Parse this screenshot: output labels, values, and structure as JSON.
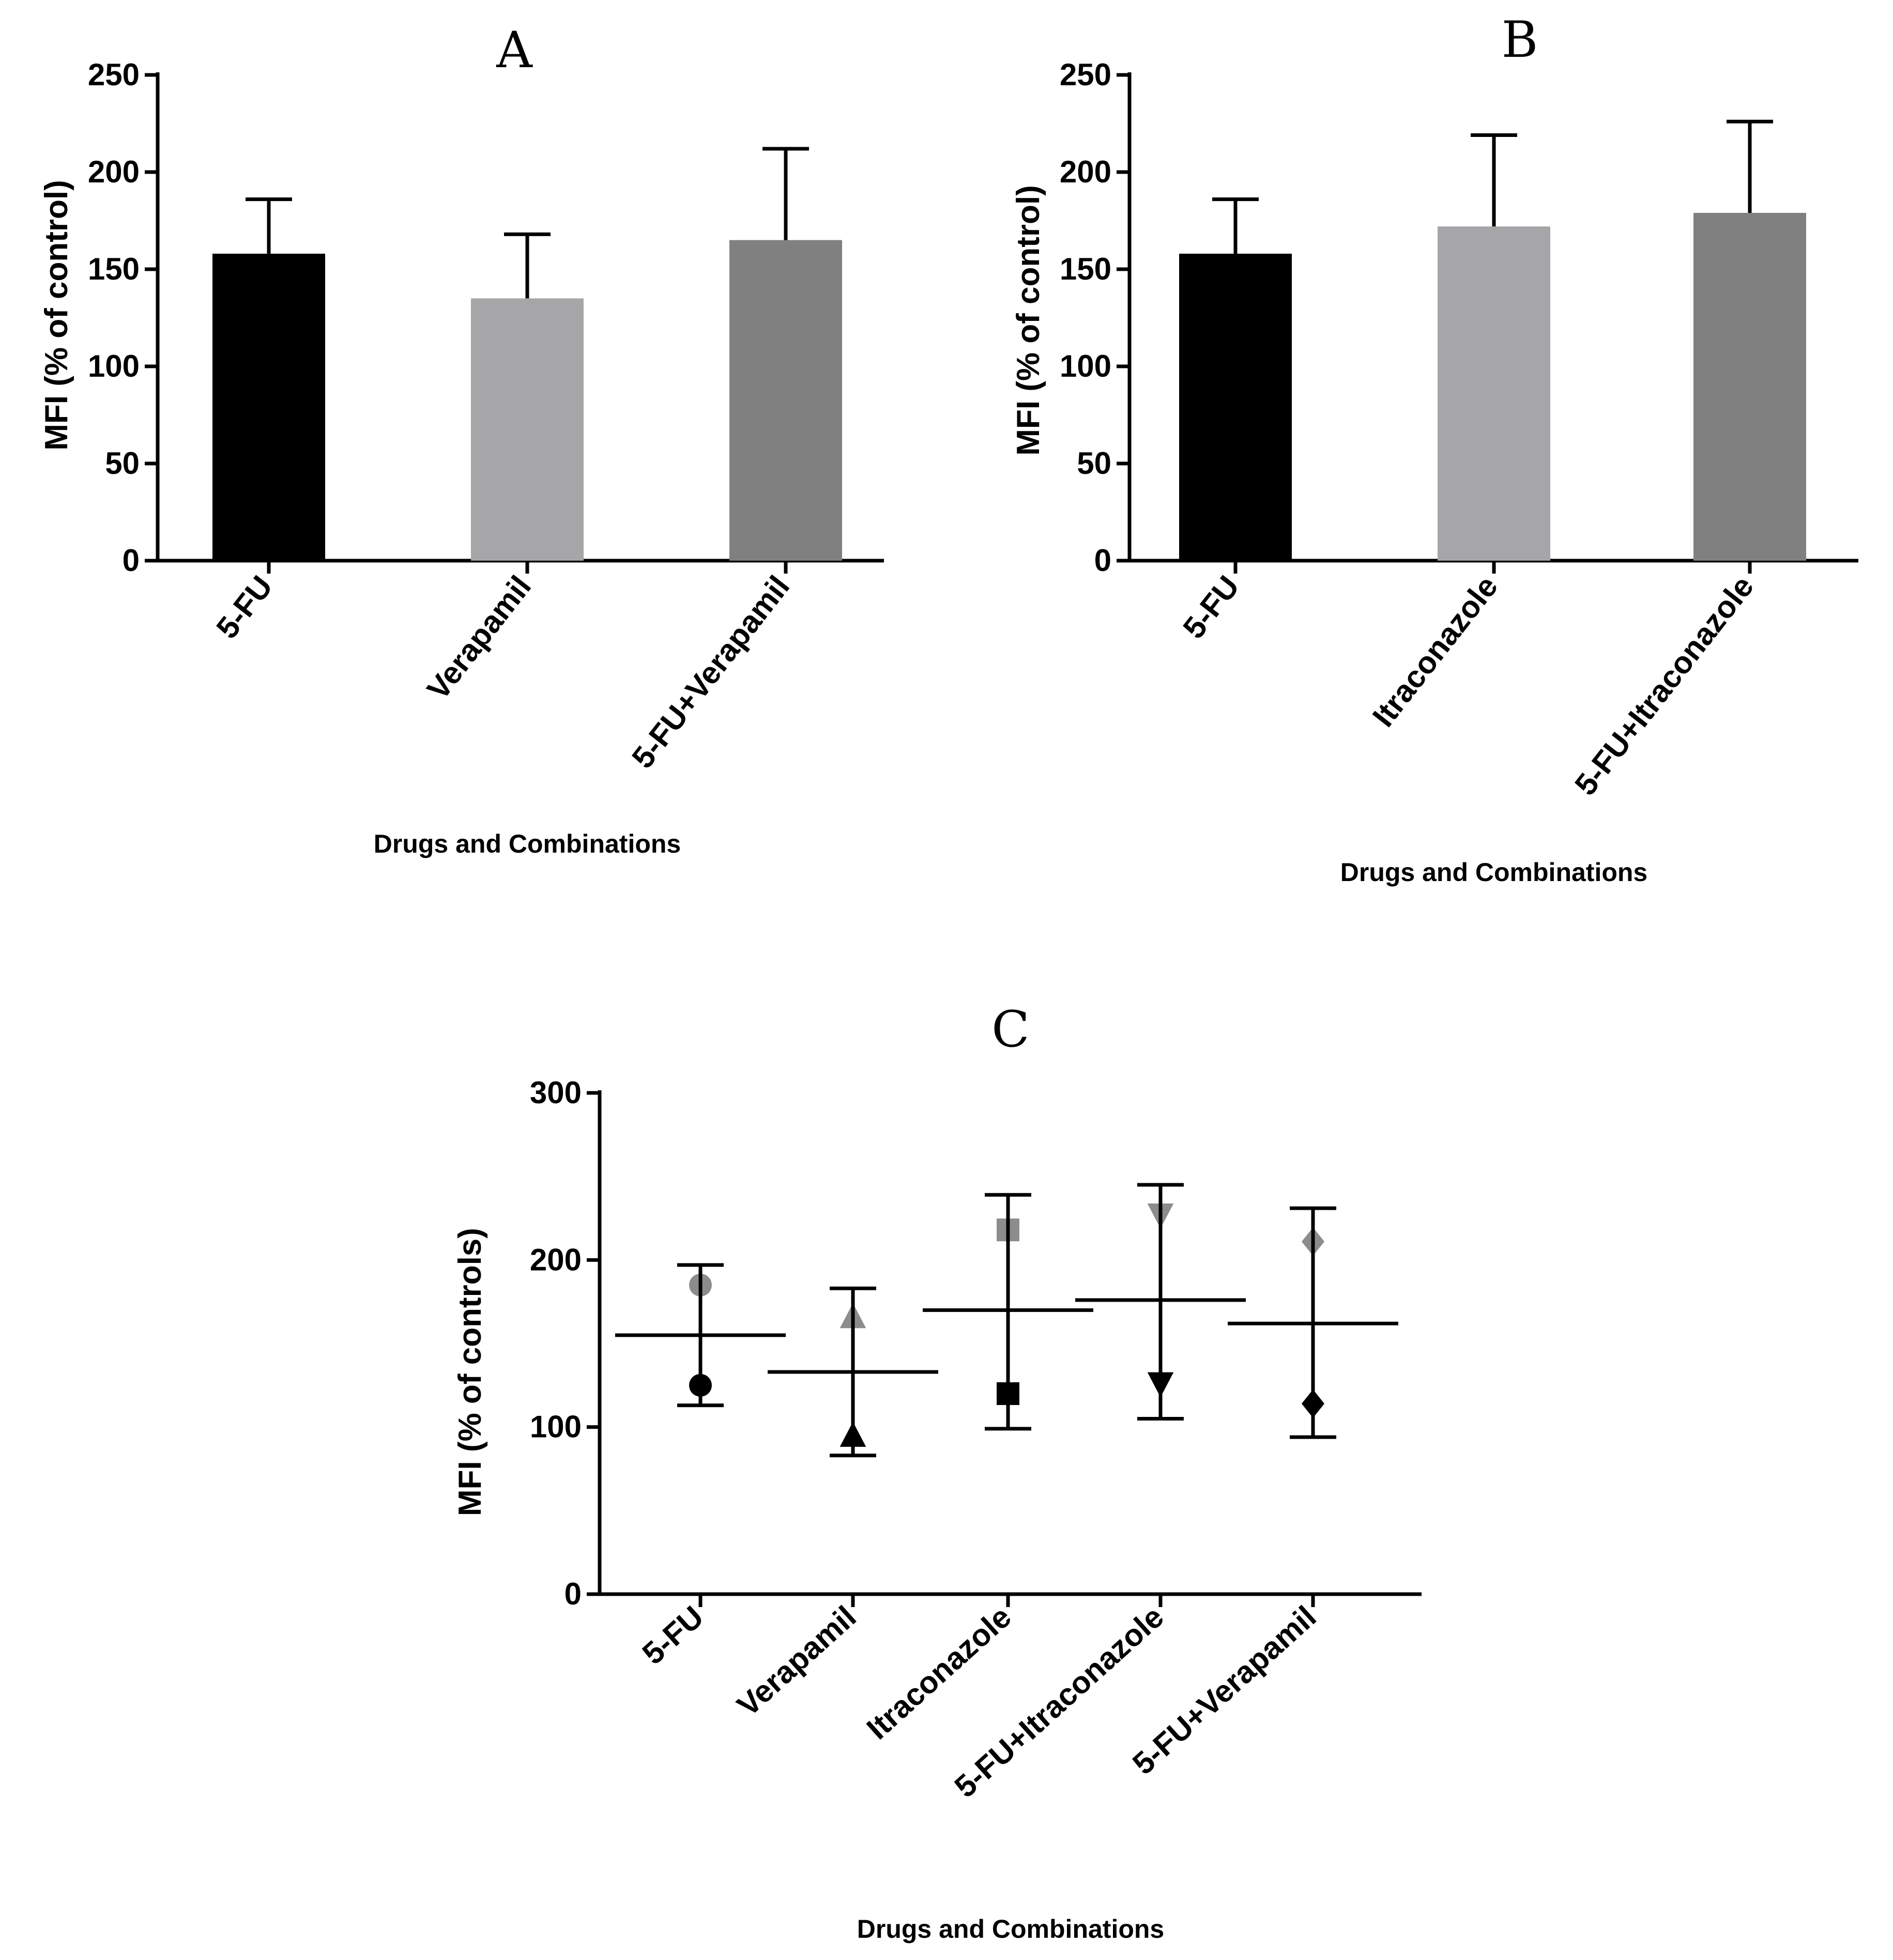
{
  "chart_data": [
    {
      "panel": "A",
      "type": "bar",
      "title": "A",
      "xlabel": "Drugs and Combinations",
      "ylabel": "MFI (% of control)",
      "ylim": [
        0,
        250
      ],
      "yticks": [
        0,
        50,
        100,
        150,
        200,
        250
      ],
      "categories": [
        "5-FU",
        "Verapamil",
        "5-FU+Verapamil"
      ],
      "values": [
        158,
        135,
        165
      ],
      "errors": [
        28,
        33,
        47
      ],
      "colors": [
        "#000000",
        "#a6a6a8",
        "#808080"
      ]
    },
    {
      "panel": "B",
      "type": "bar",
      "title": "B",
      "xlabel": "Drugs and Combinations",
      "ylabel": "MFI  (% of control)",
      "ylim": [
        0,
        250
      ],
      "yticks": [
        0,
        50,
        100,
        150,
        200,
        250
      ],
      "categories": [
        "5-FU",
        "Itraconazole",
        "5-FU+Itraconazole"
      ],
      "values": [
        158,
        172,
        179
      ],
      "errors": [
        28,
        47,
        47
      ],
      "colors": [
        "#000000",
        "#a6a6a8",
        "#808080"
      ]
    },
    {
      "panel": "C",
      "type": "scatter",
      "title": "C",
      "xlabel": "Drugs and Combinations",
      "ylabel": "MFI (% of controls)",
      "ylim": [
        0,
        300
      ],
      "yticks": [
        0,
        100,
        200,
        300
      ],
      "categories": [
        "5-FU",
        "Verapamil",
        "Itraconazole",
        "5-FU+Itraconazole",
        "5-FU+Verapamil"
      ],
      "means": [
        155,
        133,
        170,
        176,
        162
      ],
      "sd_low": [
        113,
        83,
        99,
        105,
        94
      ],
      "sd_high": [
        197,
        183,
        239,
        245,
        231
      ],
      "points": [
        {
          "high": 185,
          "low": 125,
          "marker": "circle"
        },
        {
          "high": 166,
          "low": 95,
          "marker": "triangle-up"
        },
        {
          "high": 218,
          "low": 120,
          "marker": "square"
        },
        {
          "high": 227,
          "low": 126,
          "marker": "triangle-down"
        },
        {
          "high": 211,
          "low": 114,
          "marker": "diamond"
        }
      ],
      "point_colors": {
        "high": "#8c8c8c",
        "low": "#000000"
      }
    }
  ]
}
